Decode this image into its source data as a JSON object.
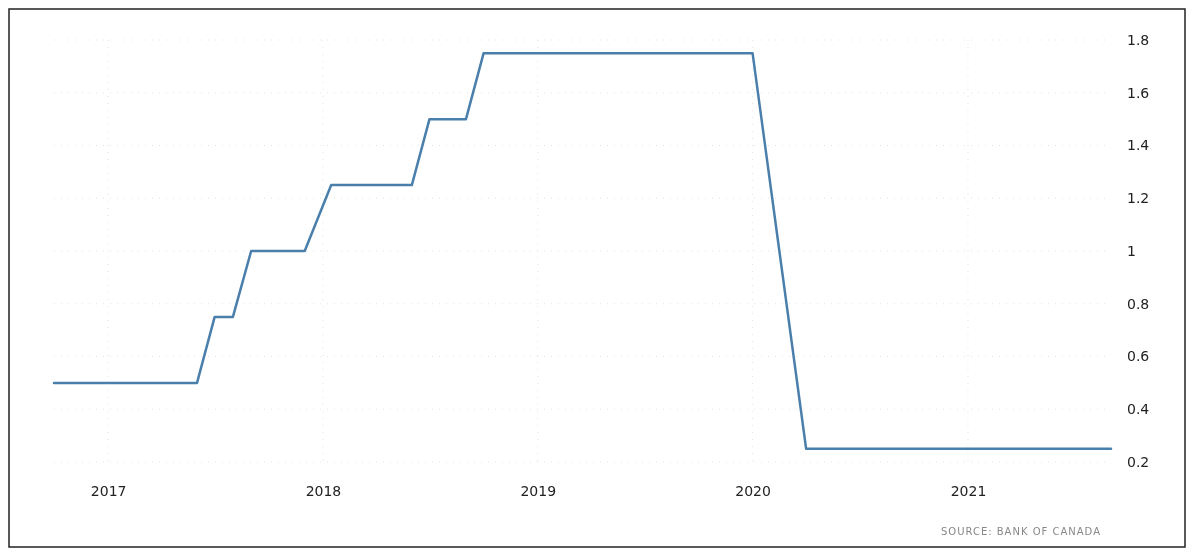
{
  "chart_data": {
    "type": "line",
    "x": [
      "2016-10",
      "2017-06",
      "2017-07",
      "2017-08",
      "2017-09",
      "2017-12",
      "2018-01-15",
      "2018-06",
      "2018-07",
      "2018-09",
      "2018-10",
      "2020-01",
      "2020-04",
      "2021-09"
    ],
    "series": [
      {
        "color": "#4a7fab",
        "values": [
          0.5,
          0.5,
          0.75,
          0.75,
          1,
          1,
          1.25,
          1.25,
          1.5,
          1.5,
          1.75,
          1.75,
          0.25,
          0.25
        ]
      }
    ],
    "xlim": [
      "2016-10",
      "2021-09"
    ],
    "xticks": [
      {
        "value": "2017",
        "label": "2017"
      },
      {
        "value": "2018",
        "label": "2018"
      },
      {
        "value": "2019",
        "label": "2019"
      },
      {
        "value": "2020",
        "label": "2020"
      },
      {
        "value": "2021",
        "label": "2021"
      }
    ],
    "ylim": [
      0.2,
      1.8
    ],
    "yticks": [
      0.2,
      0.4,
      0.6,
      0.8,
      1,
      1.2,
      1.4,
      1.6,
      1.8
    ],
    "grid": true,
    "annotations": [
      "SOURCE: BANK OF CANADA"
    ]
  }
}
